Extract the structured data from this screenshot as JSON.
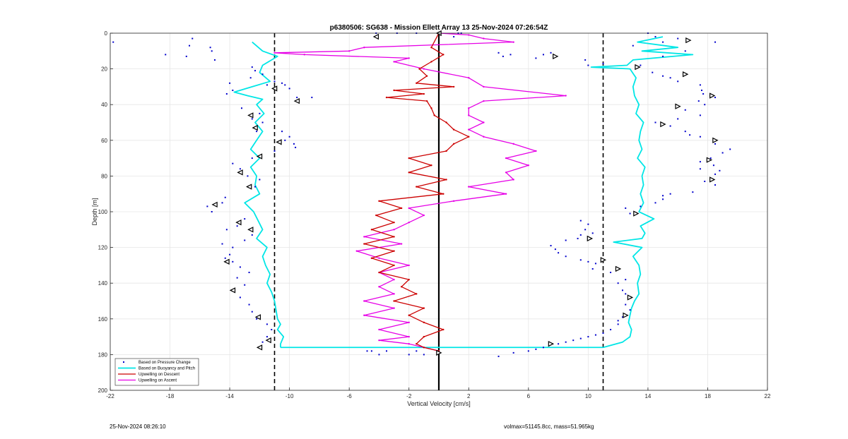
{
  "footer": {
    "left": "25-Nov-2024 08:26:10",
    "right": "volmax=51145.8cc, mass=51.965kg"
  },
  "chart_data": {
    "type": "line",
    "title": "p6380506: SG638 - Mission Ellett Array 13 25-Nov-2024 07:26:54Z",
    "xlabel": "Vertical Velocity [cm/s]",
    "ylabel": "Depth [m]",
    "xlim": [
      -22,
      22
    ],
    "ylim": [
      0,
      200
    ],
    "y_reversed": true,
    "x_ticks": [
      -22,
      -18,
      -14,
      -10,
      -6,
      -2,
      2,
      6,
      10,
      14,
      18,
      22
    ],
    "y_ticks": [
      0,
      20,
      40,
      60,
      80,
      100,
      120,
      140,
      160,
      180,
      200
    ],
    "grid": true,
    "legend_position": "bottom-left",
    "legend": [
      "Based on Pressure Change",
      "Based on Buoyancy and Pitch",
      "Upwelling on Descent",
      "Upwelling on Ascent"
    ],
    "reference_lines": {
      "vertical_dashed": [
        -11,
        11
      ],
      "vertical_solid": [
        0
      ]
    },
    "series": {
      "buoyancy_descent": {
        "color": "#00e6e6",
        "depth": [
          5,
          10,
          13,
          18,
          22,
          27,
          30,
          33,
          35,
          37,
          40,
          45,
          50,
          55,
          60,
          65,
          70,
          75,
          80,
          85,
          90,
          95,
          100,
          105,
          110,
          115,
          120,
          125,
          130,
          135,
          140,
          145,
          150,
          155,
          160,
          163,
          166,
          170,
          174,
          176
        ],
        "velocity": [
          -12.5,
          -11.8,
          -10.8,
          -11.8,
          -12,
          -11.3,
          -12.5,
          -13.7,
          -12.8,
          -11.8,
          -12.2,
          -11.7,
          -12.3,
          -11.8,
          -12.2,
          -12.6,
          -12,
          -12.6,
          -12.2,
          -12.3,
          -12,
          -13,
          -12.4,
          -12.1,
          -11.8,
          -12.2,
          -11.5,
          -11.8,
          -11.6,
          -11.3,
          -11.5,
          -11.2,
          -11,
          -10.9,
          -10.8,
          -10.6,
          -10.8,
          -10.4,
          -10.6,
          -10.6
        ]
      },
      "buoyancy_ascent": {
        "color": "#00e6e6",
        "depth": [
          176,
          173,
          170,
          166,
          162,
          158,
          154,
          150,
          146,
          140,
          135,
          130,
          125,
          120,
          117,
          115,
          112,
          108,
          104,
          100,
          95,
          90,
          85,
          80,
          75,
          70,
          65,
          60,
          55,
          50,
          45,
          40,
          35,
          30,
          25,
          20,
          19,
          18,
          15,
          12,
          10,
          8,
          5,
          2
        ],
        "velocity": [
          11,
          12.3,
          12.8,
          12.9,
          12.7,
          12.8,
          12.9,
          13.1,
          13.4,
          13.3,
          13.5,
          13.4,
          13,
          13.6,
          11.7,
          13.6,
          13.8,
          13.5,
          14.4,
          13.4,
          13.7,
          13.5,
          13.7,
          13.6,
          13.8,
          13.3,
          13.6,
          13.4,
          13.5,
          13.7,
          13.2,
          13.4,
          13.1,
          13,
          13.2,
          12.8,
          10.2,
          12.6,
          13,
          17,
          13.6,
          16,
          13.3,
          15
        ]
      },
      "upwelling_descent": {
        "name": "Upwelling on Descent",
        "color": "#cc0000",
        "depth": [
          0,
          8,
          12,
          16,
          20,
          24,
          28,
          30,
          32,
          34,
          36,
          38,
          42,
          46,
          50,
          54,
          58,
          62,
          66,
          70,
          74,
          78,
          82,
          86,
          90,
          94,
          98,
          102,
          106,
          110,
          114,
          118,
          122,
          126,
          130,
          134,
          138,
          142,
          146,
          150,
          154,
          158,
          162,
          166,
          170,
          174,
          176,
          178
        ],
        "velocity": [
          0,
          -0.5,
          0.3,
          -0.5,
          -1.3,
          -0.8,
          -1.5,
          1,
          -3,
          -1,
          -3.5,
          -0.8,
          -0.5,
          -0.3,
          0.5,
          1,
          2,
          1,
          0.5,
          -2,
          -0.5,
          -2,
          0.5,
          -1.5,
          0.3,
          -4,
          -2.5,
          -4.2,
          -3,
          -4.5,
          -3,
          -5,
          -3,
          -4.5,
          -3,
          -4,
          -2,
          -2.5,
          -1.5,
          -3,
          -1,
          -2,
          -1,
          0.3,
          -1,
          -1.5,
          -1,
          0
        ]
      },
      "upwelling_ascent": {
        "name": "Upwelling on Ascent",
        "color": "#e600e6",
        "depth": [
          178,
          176,
          174,
          172,
          170,
          166,
          162,
          158,
          154,
          150,
          146,
          142,
          138,
          134,
          130,
          126,
          122,
          118,
          114,
          110,
          106,
          102,
          98,
          94,
          90,
          86,
          82,
          78,
          74,
          70,
          66,
          62,
          58,
          54,
          50,
          46,
          42,
          38,
          35,
          30,
          25,
          20,
          16,
          14,
          12,
          11,
          10,
          8,
          5,
          3,
          1,
          0
        ],
        "velocity": [
          0,
          -1,
          -2,
          -4,
          -2,
          -4,
          -2,
          -5,
          -3,
          -5,
          -3,
          -4,
          -3,
          -4,
          -2,
          -4,
          -5.5,
          -2.5,
          -5,
          -3,
          -2,
          -1,
          -2,
          1,
          4.5,
          2,
          5,
          4.5,
          6,
          4.5,
          6.5,
          5,
          3,
          2,
          3,
          2,
          2,
          3,
          8.5,
          3,
          2,
          -1,
          -3,
          -2,
          -9,
          -11,
          -6,
          -5,
          5,
          3,
          2,
          0
        ]
      },
      "pressure_change_descent": {
        "name": "Based on Pressure Change",
        "color": "#0000cc",
        "points": [
          [
            -21.8,
            5
          ],
          [
            -18.3,
            12
          ],
          [
            -16.5,
            3
          ],
          [
            -16.7,
            7
          ],
          [
            -15.3,
            8
          ],
          [
            -15.2,
            10
          ],
          [
            -15,
            15
          ],
          [
            -16.9,
            13
          ],
          [
            -14,
            28
          ],
          [
            -13.8,
            32
          ],
          [
            -14.2,
            34
          ],
          [
            -12.5,
            19
          ],
          [
            -12.6,
            25
          ],
          [
            -12.3,
            21
          ],
          [
            -11.8,
            23
          ],
          [
            -11.5,
            29
          ],
          [
            -11,
            27
          ],
          [
            -10.5,
            28
          ],
          [
            -10.3,
            29
          ],
          [
            -10,
            31
          ],
          [
            -9.5,
            36
          ],
          [
            -8.5,
            36
          ],
          [
            -13.2,
            42
          ],
          [
            -12,
            45
          ],
          [
            -12.5,
            48
          ],
          [
            -11.8,
            50
          ],
          [
            -12.2,
            55
          ],
          [
            -10.5,
            55
          ],
          [
            -10,
            58
          ],
          [
            -10.3,
            60
          ],
          [
            -9.7,
            62
          ],
          [
            -9.6,
            64
          ],
          [
            -11,
            66
          ],
          [
            -12.5,
            70
          ],
          [
            -13.8,
            73
          ],
          [
            -13.3,
            76
          ],
          [
            -12.8,
            80
          ],
          [
            -12,
            82
          ],
          [
            -12.3,
            86
          ],
          [
            -14.3,
            92
          ],
          [
            -14.5,
            95
          ],
          [
            -15.2,
            100
          ],
          [
            -15.5,
            97
          ],
          [
            -13,
            104
          ],
          [
            -13.5,
            108
          ],
          [
            -14.2,
            110
          ],
          [
            -12.5,
            113
          ],
          [
            -13,
            116
          ],
          [
            -14.5,
            118
          ],
          [
            -13.8,
            120
          ],
          [
            -14,
            124
          ],
          [
            -14.3,
            126
          ],
          [
            -13.8,
            128
          ],
          [
            -13.3,
            131
          ],
          [
            -12.7,
            134
          ],
          [
            -13.5,
            137
          ],
          [
            -13,
            141
          ],
          [
            -13.3,
            148
          ],
          [
            -12.7,
            152
          ],
          [
            -12.5,
            156
          ],
          [
            -12.2,
            160
          ],
          [
            -11.5,
            163
          ],
          [
            -11.2,
            166
          ],
          [
            -11.5,
            170
          ],
          [
            -11.8,
            173
          ],
          [
            -4.5,
            178
          ],
          [
            -4,
            180
          ],
          [
            -2,
            180
          ],
          [
            -1.5,
            178
          ],
          [
            -1,
            180
          ],
          [
            -4.8,
            178
          ],
          [
            -3.5,
            178
          ],
          [
            -4.2,
            0
          ],
          [
            -2.8,
            0
          ],
          [
            -1.5,
            0
          ],
          [
            1.3,
            0
          ],
          [
            1,
            2
          ],
          [
            1.5,
            0
          ]
        ]
      },
      "pressure_change_ascent": {
        "name": "Based on Pressure Change",
        "color": "#0000cc",
        "points": [
          [
            4,
            181
          ],
          [
            5,
            179
          ],
          [
            6,
            178
          ],
          [
            6.5,
            177
          ],
          [
            7,
            176
          ],
          [
            8,
            174
          ],
          [
            8.5,
            173
          ],
          [
            9,
            172
          ],
          [
            9.5,
            171
          ],
          [
            10,
            170
          ],
          [
            10.5,
            169
          ],
          [
            11,
            168
          ],
          [
            11.5,
            166
          ],
          [
            12,
            163
          ],
          [
            12,
            161
          ],
          [
            12.3,
            159
          ],
          [
            12.5,
            152
          ],
          [
            12.8,
            155
          ],
          [
            12.5,
            146
          ],
          [
            12.3,
            144
          ],
          [
            12,
            140
          ],
          [
            12.5,
            138
          ],
          [
            11.5,
            134
          ],
          [
            10.3,
            132
          ],
          [
            10.5,
            129
          ],
          [
            10,
            128
          ],
          [
            9.5,
            127
          ],
          [
            8.5,
            125
          ],
          [
            8,
            123
          ],
          [
            7.8,
            121
          ],
          [
            7.5,
            119
          ],
          [
            8.5,
            116
          ],
          [
            9.3,
            115
          ],
          [
            9.5,
            113
          ],
          [
            10.3,
            112
          ],
          [
            9.8,
            110
          ],
          [
            10,
            107
          ],
          [
            9.5,
            105
          ],
          [
            12.8,
            101
          ],
          [
            12.5,
            98
          ],
          [
            13.5,
            97
          ],
          [
            14.5,
            95
          ],
          [
            15,
            93
          ],
          [
            15,
            91
          ],
          [
            15.5,
            90
          ],
          [
            17,
            89
          ],
          [
            17.8,
            83
          ],
          [
            18.5,
            85
          ],
          [
            18.3,
            82
          ],
          [
            18.5,
            79
          ],
          [
            18.8,
            77
          ],
          [
            17.5,
            76
          ],
          [
            18.4,
            74
          ],
          [
            17.5,
            72
          ],
          [
            18.2,
            70
          ],
          [
            19,
            67
          ],
          [
            19.5,
            65
          ],
          [
            18.5,
            62
          ],
          [
            17.5,
            58
          ],
          [
            16.8,
            57
          ],
          [
            16.5,
            55
          ],
          [
            15.5,
            52
          ],
          [
            14.5,
            50
          ],
          [
            16,
            48
          ],
          [
            17.5,
            46
          ],
          [
            16.5,
            43
          ],
          [
            17.8,
            40
          ],
          [
            17.4,
            38
          ],
          [
            18.5,
            36
          ],
          [
            17.7,
            34
          ],
          [
            17.6,
            32
          ],
          [
            17.5,
            29
          ],
          [
            16,
            27
          ],
          [
            15.5,
            25
          ],
          [
            15,
            24
          ],
          [
            14.3,
            22
          ],
          [
            13.5,
            18
          ],
          [
            11,
            17
          ],
          [
            10,
            18
          ],
          [
            9.8,
            15
          ],
          [
            7.5,
            11
          ],
          [
            7,
            12
          ],
          [
            6.5,
            14
          ],
          [
            4.8,
            12
          ],
          [
            4.3,
            13
          ],
          [
            4,
            11
          ],
          [
            13,
            7
          ],
          [
            15,
            5
          ],
          [
            14.5,
            2
          ],
          [
            14,
            0
          ],
          [
            16,
            3
          ],
          [
            18.5,
            5
          ],
          [
            16.5,
            10
          ],
          [
            15,
            13
          ]
        ]
      },
      "markers_descent": {
        "points": [
          [
            -4.2,
            2
          ],
          [
            -11,
            31
          ],
          [
            -9.5,
            38
          ],
          [
            -12.6,
            46
          ],
          [
            -12.3,
            53
          ],
          [
            -10.7,
            61
          ],
          [
            -12,
            69
          ],
          [
            -13.3,
            78
          ],
          [
            -12.7,
            86
          ],
          [
            -15,
            96
          ],
          [
            -13.4,
            106
          ],
          [
            -12.6,
            110
          ],
          [
            -14.2,
            128
          ],
          [
            -13.8,
            144
          ],
          [
            -12.1,
            159
          ],
          [
            -11.4,
            172
          ],
          [
            -12,
            176
          ],
          [
            0,
            0
          ]
        ]
      },
      "markers_ascent": {
        "points": [
          [
            0,
            179
          ],
          [
            7.5,
            174
          ],
          [
            10.1,
            115
          ],
          [
            11,
            127
          ],
          [
            12,
            132
          ],
          [
            12.8,
            148
          ],
          [
            12.5,
            158
          ],
          [
            13.2,
            101
          ],
          [
            13.3,
            19
          ],
          [
            16.7,
            4
          ],
          [
            7.8,
            13
          ],
          [
            16.5,
            23
          ],
          [
            18.3,
            35
          ],
          [
            16,
            41
          ],
          [
            15,
            51
          ],
          [
            18.5,
            60
          ],
          [
            18.1,
            71
          ],
          [
            18.3,
            82
          ]
        ]
      }
    }
  }
}
